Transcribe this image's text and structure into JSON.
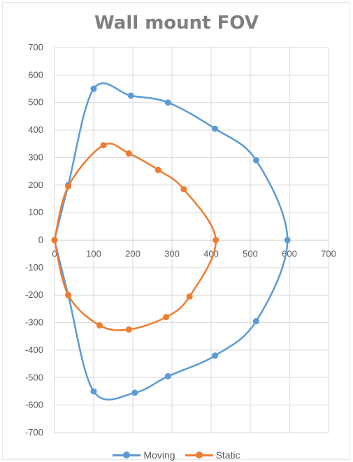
{
  "chart_data": {
    "type": "scatter",
    "title": "Wall mount FOV",
    "xlabel": "",
    "ylabel": "",
    "xlim": [
      0,
      700
    ],
    "ylim": [
      -700,
      700
    ],
    "x_ticks": [
      0,
      100,
      200,
      300,
      400,
      500,
      600,
      700
    ],
    "x_tick_labels": [
      "0",
      "100",
      "200",
      "300",
      "400",
      "500",
      "600",
      "700"
    ],
    "y_ticks": [
      700,
      600,
      500,
      400,
      300,
      200,
      100,
      0,
      -100,
      -200,
      -300,
      -400,
      -500,
      -600,
      -700
    ],
    "y_tick_labels": [
      "700",
      "600",
      "500",
      "400",
      "300",
      "200",
      "100",
      "0",
      "-100",
      "-200",
      "-300",
      "-400",
      "-500",
      "-600",
      "-700"
    ],
    "grid": true,
    "smooth": true,
    "legend_position": "bottom",
    "series": [
      {
        "name": "Moving",
        "color": "#5b9bd5",
        "points": [
          [
            0,
            0
          ],
          [
            35,
            200
          ],
          [
            100,
            550
          ],
          [
            195,
            525
          ],
          [
            290,
            500
          ],
          [
            410,
            405
          ],
          [
            515,
            290
          ],
          [
            595,
            0
          ],
          [
            515,
            -295
          ],
          [
            410,
            -420
          ],
          [
            290,
            -495
          ],
          [
            205,
            -555
          ],
          [
            100,
            -550
          ],
          [
            35,
            -200
          ],
          [
            0,
            0
          ]
        ]
      },
      {
        "name": "Static",
        "color": "#ed7d31",
        "points": [
          [
            0,
            0
          ],
          [
            35,
            195
          ],
          [
            125,
            345
          ],
          [
            190,
            315
          ],
          [
            265,
            255
          ],
          [
            330,
            185
          ],
          [
            412,
            0
          ],
          [
            345,
            -205
          ],
          [
            285,
            -280
          ],
          [
            190,
            -325
          ],
          [
            115,
            -310
          ],
          [
            35,
            -200
          ],
          [
            0,
            0
          ]
        ]
      }
    ]
  }
}
